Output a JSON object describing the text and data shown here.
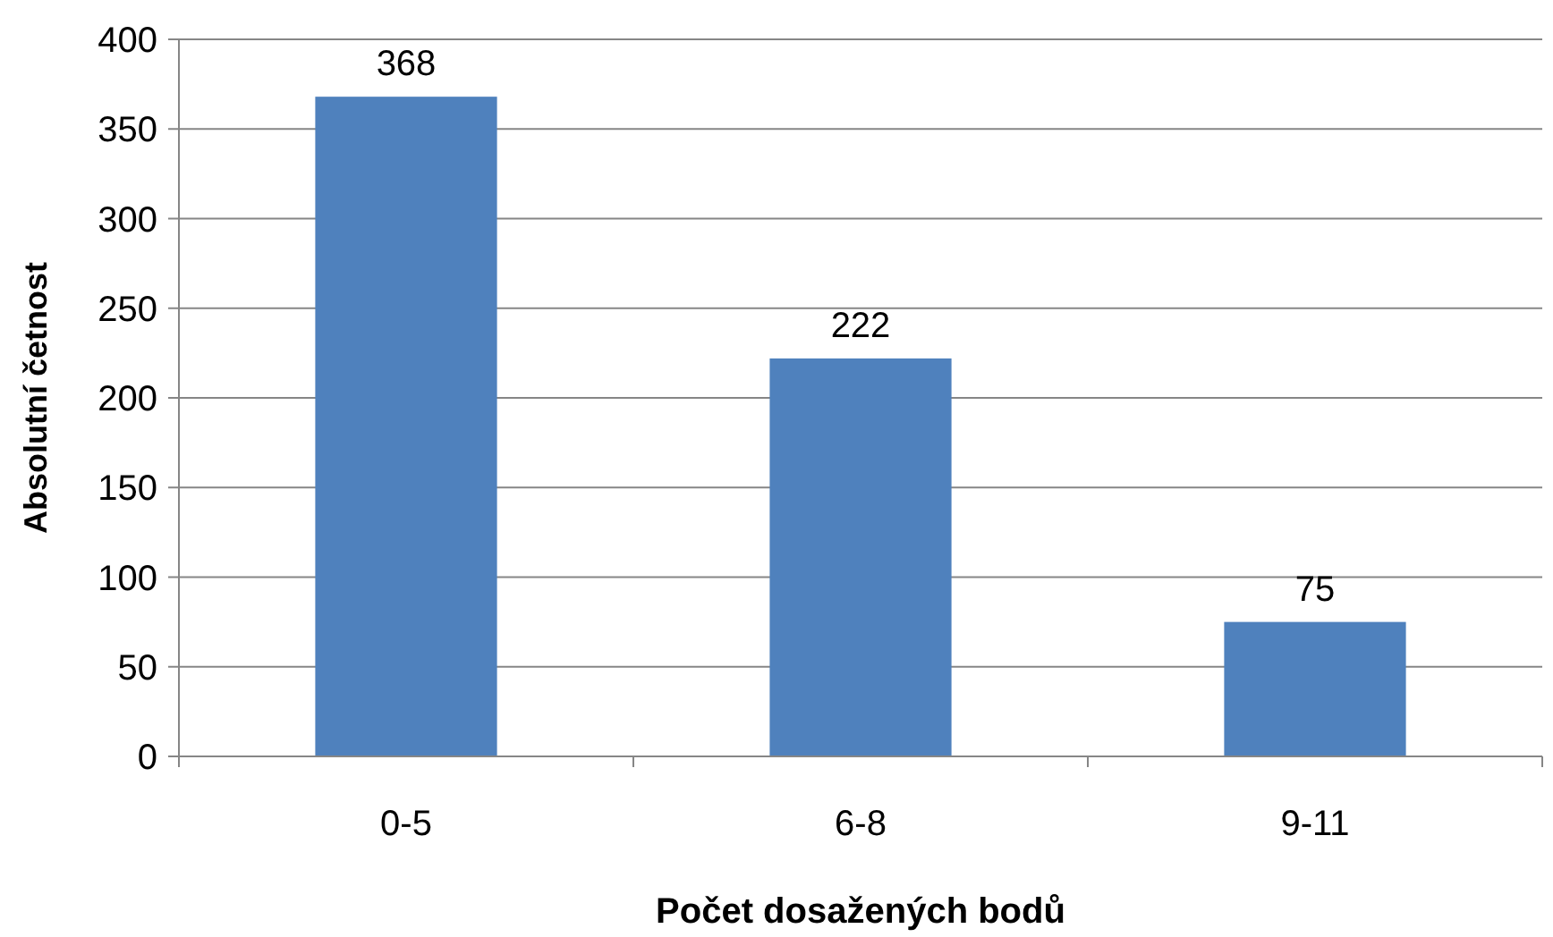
{
  "chart_data": {
    "type": "bar",
    "xlabel": "Počet dosažených bodů",
    "ylabel": "Absolutní četnost",
    "categories": [
      "0-5",
      "6-8",
      "9-11"
    ],
    "values": [
      368,
      222,
      75
    ],
    "color": "#4f81bd",
    "ylim": [
      0,
      400
    ],
    "yticks": [
      0,
      50,
      100,
      150,
      200,
      250,
      300,
      350,
      400
    ],
    "grid": "y",
    "data_labels": true
  }
}
